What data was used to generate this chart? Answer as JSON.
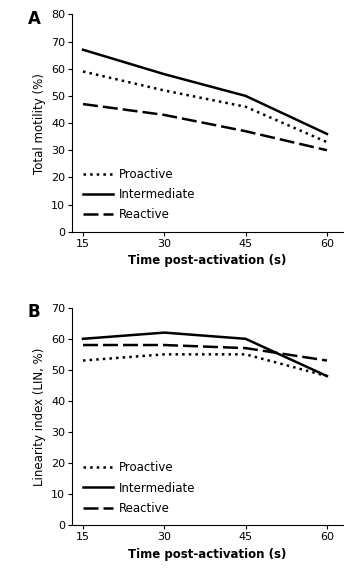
{
  "x": [
    15,
    30,
    45,
    60
  ],
  "panel_A": {
    "title": "A",
    "ylabel": "Total motility (%)",
    "xlabel": "Time post-activation (s)",
    "ylim": [
      0,
      80
    ],
    "yticks": [
      0,
      10,
      20,
      30,
      40,
      50,
      60,
      70,
      80
    ],
    "proactive": [
      59,
      52,
      46,
      33
    ],
    "intermediate": [
      67,
      58,
      50,
      36
    ],
    "reactive": [
      47,
      43,
      37,
      30
    ]
  },
  "panel_B": {
    "title": "B",
    "ylabel": "Linearity index (LIN, %)",
    "xlabel": "Time post-activation (s)",
    "ylim": [
      0,
      70
    ],
    "yticks": [
      0,
      10,
      20,
      30,
      40,
      50,
      60,
      70
    ],
    "proactive": [
      53,
      55,
      55,
      48
    ],
    "intermediate": [
      60,
      62,
      60,
      48
    ],
    "reactive": [
      58,
      58,
      57,
      53
    ]
  },
  "legend_labels": [
    "Proactive",
    "Intermediate",
    "Reactive"
  ],
  "line_color": "#000000",
  "line_width": 1.8,
  "xticks": [
    15,
    30,
    45,
    60
  ],
  "font_color": "#000000",
  "background_color": "#ffffff"
}
